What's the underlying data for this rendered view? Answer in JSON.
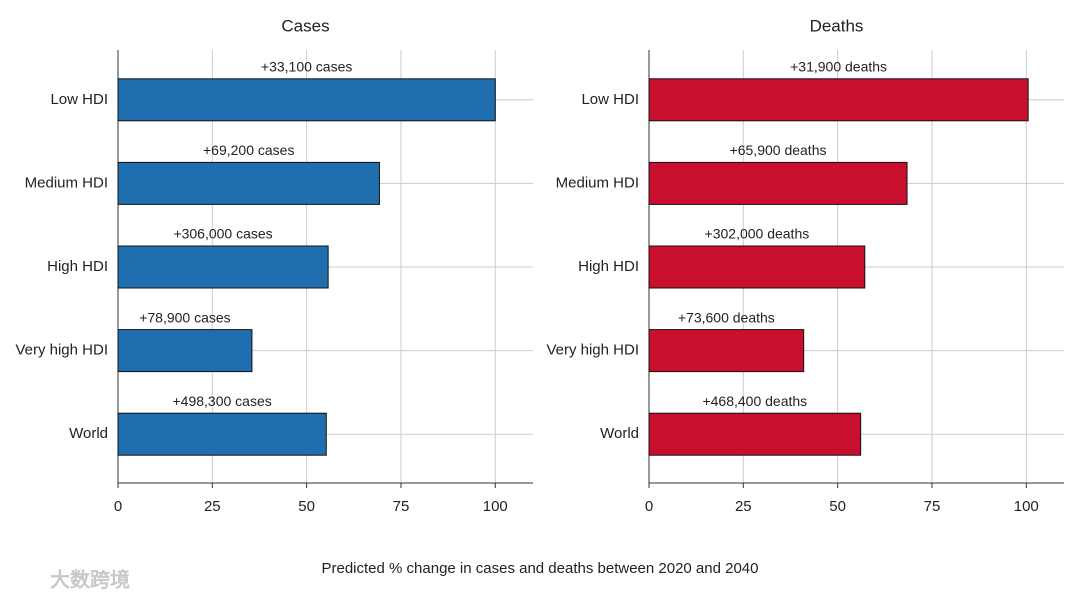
{
  "chart_data": [
    {
      "type": "bar",
      "orientation": "horizontal",
      "title": "Cases",
      "categories": [
        "Low HDI",
        "Medium HDI",
        "High HDI",
        "Very high HDI",
        "World"
      ],
      "values": [
        100,
        69.3,
        55.7,
        35.5,
        55.2
      ],
      "annotations": [
        "+33,100 cases",
        "+69,200 cases",
        "+306,000 cases",
        "+78,900 cases",
        "+498,300 cases"
      ],
      "color": "#1f6fb0",
      "xlim": [
        0,
        110
      ],
      "xticks": [
        0,
        25,
        50,
        75,
        100
      ],
      "grid": true
    },
    {
      "type": "bar",
      "orientation": "horizontal",
      "title": "Deaths",
      "categories": [
        "Low HDI",
        "Medium HDI",
        "High HDI",
        "Very high HDI",
        "World"
      ],
      "values": [
        100.5,
        68.4,
        57.2,
        41,
        56.1
      ],
      "annotations": [
        "+31,900 deaths",
        "+65,900 deaths",
        "+302,000 deaths",
        "+73,600 deaths",
        "+468,400 deaths"
      ],
      "color": "#c8102e",
      "xlim": [
        0,
        110
      ],
      "xticks": [
        0,
        25,
        50,
        75,
        100
      ],
      "grid": true
    }
  ],
  "xlabel": "Predicted % change in cases and deaths between 2020 and 2040",
  "watermark": "大数跨境"
}
